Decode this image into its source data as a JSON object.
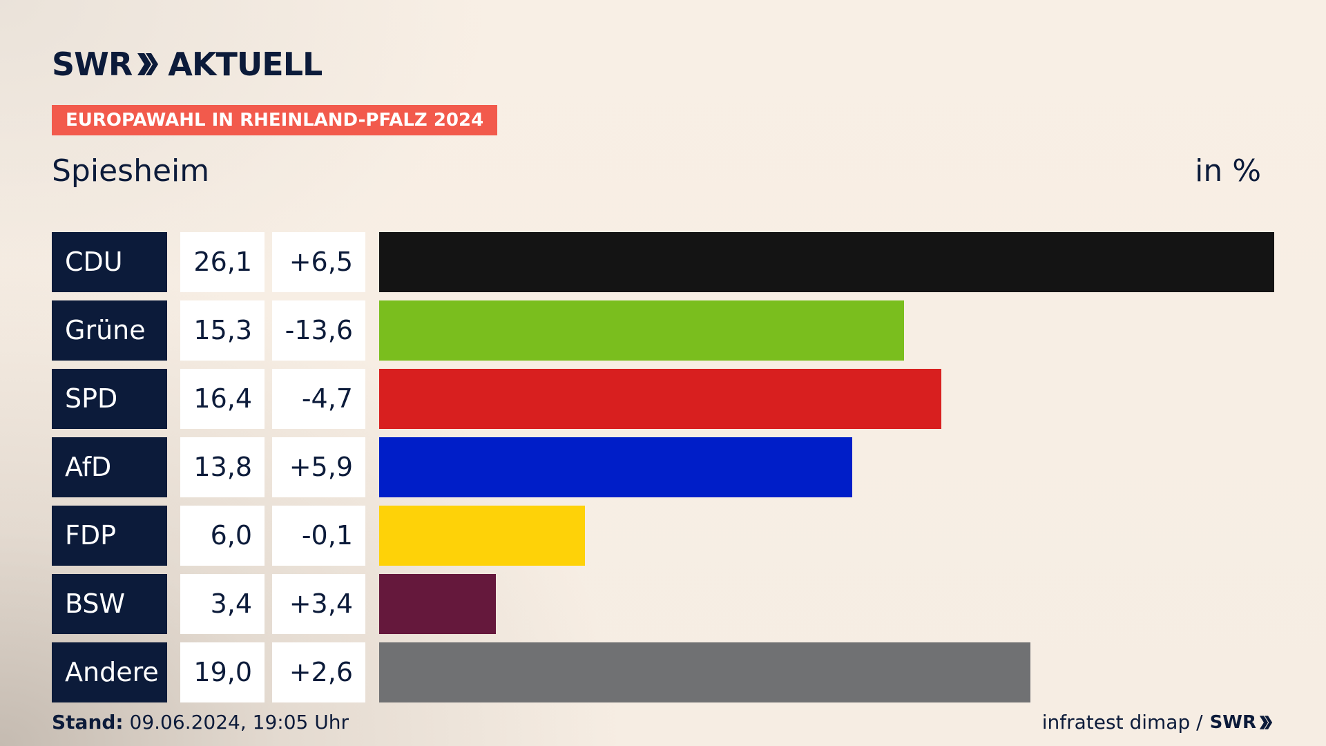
{
  "brand": {
    "logo_left": "SWR",
    "logo_right": "AKTUELL"
  },
  "banner": "EUROPAWAHL IN RHEINLAND-PFALZ 2024",
  "location": "Spiesheim",
  "unit": "in %",
  "colors": {
    "navy": "#0c1b3a",
    "banner": "#f25a4c"
  },
  "chart_data": {
    "type": "bar",
    "orientation": "horizontal",
    "title": "Spiesheim",
    "unit": "in %",
    "categories": [
      "CDU",
      "Grüne",
      "SPD",
      "AfD",
      "FDP",
      "BSW",
      "Andere"
    ],
    "values": [
      26.1,
      15.3,
      16.4,
      13.8,
      6.0,
      3.4,
      19.0
    ],
    "value_labels": [
      "26,1",
      "15,3",
      "16,4",
      "13,8",
      "6,0",
      "3,4",
      "19,0"
    ],
    "change_labels": [
      "+6,5",
      "-13,6",
      "-4,7",
      "+5,9",
      "-0,1",
      "+3,4",
      "+2,6"
    ],
    "changes": [
      6.5,
      -13.6,
      -4.7,
      5.9,
      -0.1,
      3.4,
      2.6
    ],
    "bar_colors": [
      "#141414",
      "#7abe1e",
      "#d81f1f",
      "#001ec8",
      "#fed208",
      "#65183c",
      "#707173"
    ],
    "xlim": [
      0,
      26.1
    ]
  },
  "footer": {
    "stand_label": "Stand:",
    "stand_value": "09.06.2024, 19:05 Uhr",
    "source": "infratest dimap /",
    "source_logo": "SWR"
  }
}
